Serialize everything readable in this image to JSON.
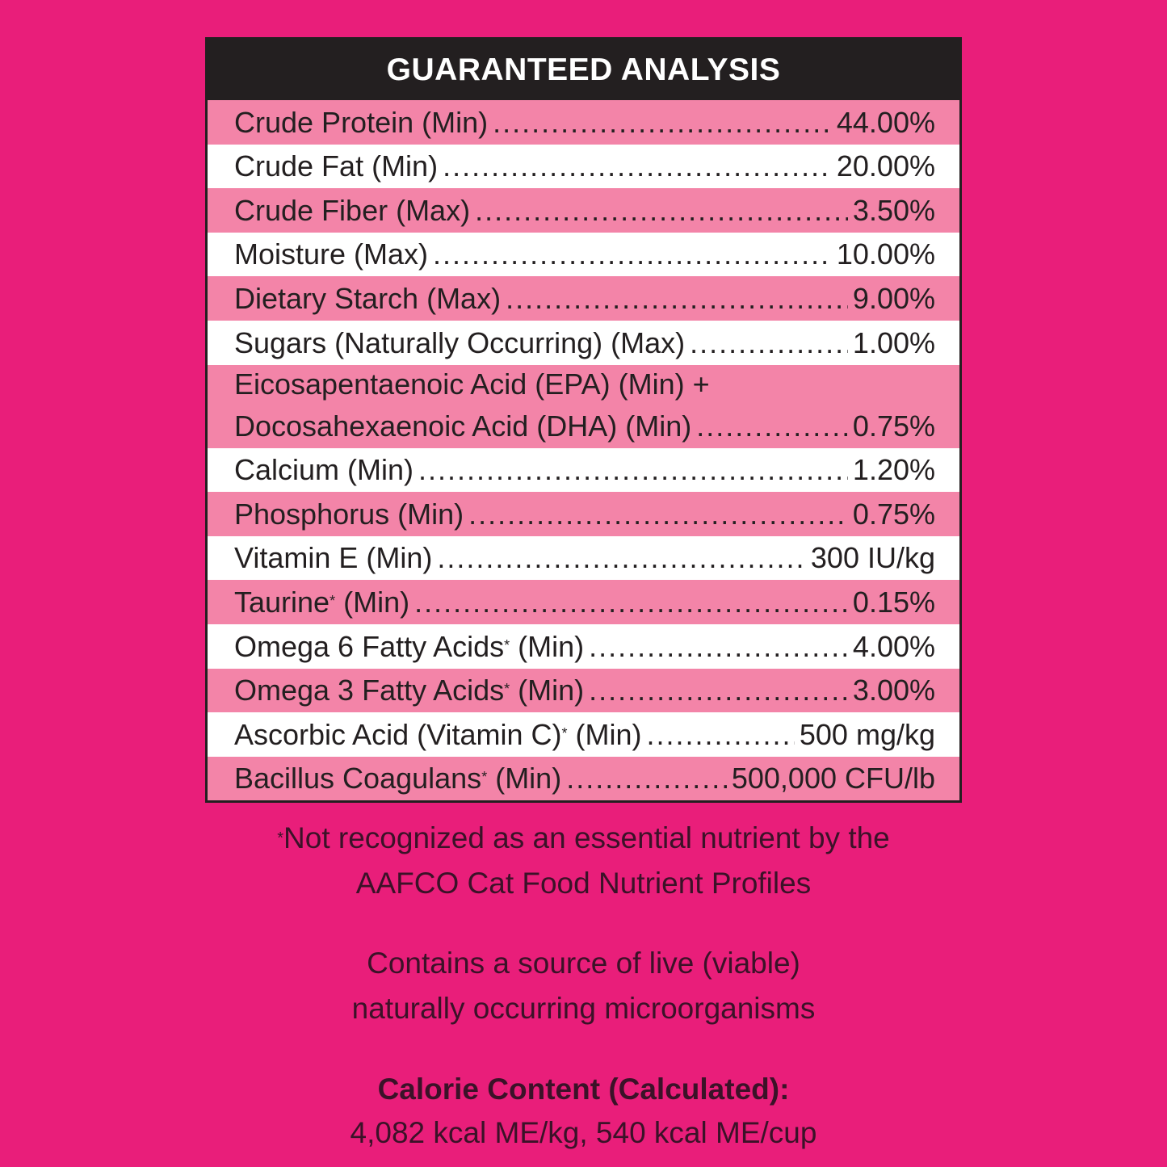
{
  "title": "GUARANTEED ANALYSIS",
  "colors": {
    "background": "#E91E7A",
    "pink_row": "#F384A8",
    "white_row": "#FFFFFF",
    "header": "#231F20",
    "text": "#231F20"
  },
  "rows": [
    {
      "name": "Crude Protein",
      "mark": "",
      "qualifier": " (Min)",
      "value": "44.00%"
    },
    {
      "name": "Crude Fat",
      "mark": "",
      "qualifier": " (Min)",
      "value": "20.00%"
    },
    {
      "name": "Crude Fiber",
      "mark": "",
      "qualifier": " (Max)",
      "value": "3.50%"
    },
    {
      "name": "Moisture",
      "mark": "",
      "qualifier": " (Max)",
      "value": "10.00%"
    },
    {
      "name": "Dietary Starch",
      "mark": "",
      "qualifier": " (Max)",
      "value": "9.00%"
    },
    {
      "name": "Sugars (Naturally Occurring)",
      "mark": "",
      "qualifier": " (Max)",
      "value": "1.00%"
    },
    {
      "line1": "Eicosapentaenoic Acid (EPA) (Min) +",
      "name": "Docosahexaenoic Acid (DHA)",
      "mark": "",
      "qualifier": " (Min)",
      "value": "0.75%"
    },
    {
      "name": "Calcium",
      "mark": "",
      "qualifier": " (Min)",
      "value": "1.20%"
    },
    {
      "name": "Phosphorus",
      "mark": "",
      "qualifier": " (Min)",
      "value": "0.75%"
    },
    {
      "name": "Vitamin E",
      "mark": "",
      "qualifier": " (Min)",
      "value": "300 IU/kg"
    },
    {
      "name": "Taurine",
      "mark": "*",
      "qualifier": " (Min)",
      "value": "0.15%"
    },
    {
      "name": "Omega 6 Fatty Acids",
      "mark": "*",
      "qualifier": " (Min)",
      "value": "4.00%"
    },
    {
      "name": "Omega 3 Fatty Acids",
      "mark": "*",
      "qualifier": " (Min)",
      "value": "3.00%"
    },
    {
      "name": "Ascorbic Acid (Vitamin C)",
      "mark": "*",
      "qualifier": " (Min)",
      "value": "500 mg/kg"
    },
    {
      "name": "Bacillus Coagulans",
      "mark": "*",
      "qualifier": " (Min)",
      "value": "500,000 CFU/lb"
    }
  ],
  "footnote": {
    "mark": "*",
    "line1": "Not recognized as an essential nutrient by the",
    "line2": "AAFCO Cat Food Nutrient Profiles"
  },
  "probiotic_note": {
    "line1": "Contains a source of live (viable)",
    "line2": "naturally occurring microorganisms"
  },
  "calorie": {
    "heading": "Calorie Content (Calculated):",
    "value": "4,082 kcal ME/kg, 540 kcal ME/cup"
  }
}
